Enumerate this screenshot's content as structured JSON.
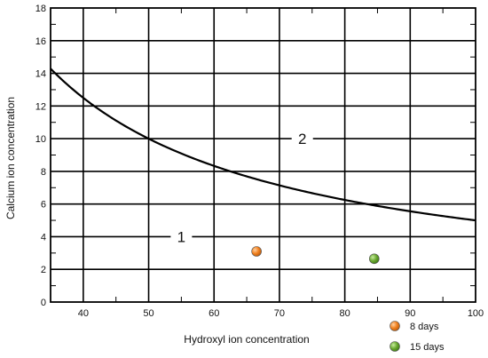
{
  "chart_data": {
    "type": "scatter",
    "title": "",
    "xlabel": "Hydroxyl ion concentration",
    "ylabel": "Calcium ion concentration",
    "xlim": [
      35,
      100
    ],
    "ylim": [
      0,
      18
    ],
    "x_major_ticks": [
      40,
      50,
      60,
      70,
      80,
      90,
      100
    ],
    "y_major_ticks": [
      0,
      2,
      4,
      6,
      8,
      10,
      12,
      14,
      16,
      18
    ],
    "grid": true,
    "grid_minor_x_step": 5,
    "grid_minor_y_step": 1,
    "curve": {
      "description_constant": 500,
      "color": "#000000"
    },
    "region_labels": [
      {
        "text": "1",
        "x": 55,
        "y": 4
      },
      {
        "text": "2",
        "x": 73.5,
        "y": 10
      }
    ],
    "series": [
      {
        "name": "8 days",
        "color": "#f0801e",
        "points": [
          {
            "x": 66.5,
            "y": 3.1
          }
        ]
      },
      {
        "name": "15 days",
        "color": "#6aa830",
        "points": [
          {
            "x": 84.5,
            "y": 2.65
          }
        ]
      }
    ],
    "legend": {
      "position": "bottom-right",
      "entries": [
        "8 days",
        "15 days"
      ]
    }
  }
}
